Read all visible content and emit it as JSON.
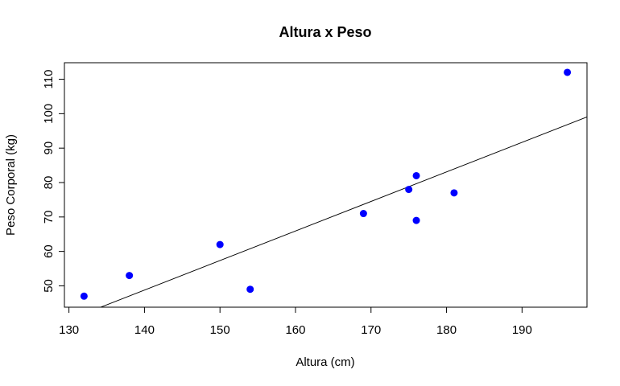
{
  "chart_data": {
    "type": "scatter",
    "title": "Altura x Peso",
    "xlabel": "Altura (cm)",
    "ylabel": "Peso Corporal (kg)",
    "xlim": [
      129.4,
      198.6
    ],
    "ylim": [
      43.8,
      114.8
    ],
    "x_ticks": [
      130,
      140,
      150,
      160,
      170,
      180,
      190
    ],
    "y_ticks": [
      50,
      60,
      70,
      80,
      90,
      100,
      110
    ],
    "x_tick_labels": [
      "130",
      "140",
      "150",
      "160",
      "170",
      "180",
      "190"
    ],
    "y_tick_labels": [
      "50",
      "60",
      "70",
      "80",
      "90",
      "100",
      "110"
    ],
    "grid": false,
    "point_color": "#0000ff",
    "line_color": "#000000",
    "points": [
      {
        "x": 132,
        "y": 47
      },
      {
        "x": 138,
        "y": 53
      },
      {
        "x": 150,
        "y": 62
      },
      {
        "x": 154,
        "y": 49
      },
      {
        "x": 169,
        "y": 71
      },
      {
        "x": 175,
        "y": 78
      },
      {
        "x": 176,
        "y": 82
      },
      {
        "x": 176,
        "y": 69
      },
      {
        "x": 181,
        "y": 77
      },
      {
        "x": 196,
        "y": 112
      }
    ],
    "regression_line": {
      "intercept": -71.35,
      "slope": 0.858
    }
  }
}
